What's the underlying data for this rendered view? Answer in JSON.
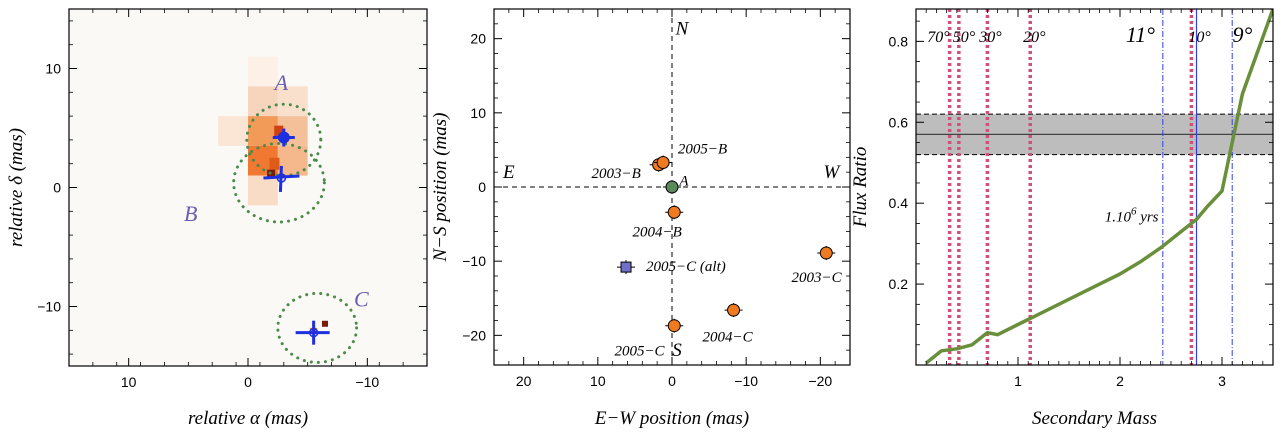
{
  "chart_data": [
    {
      "type": "heatmap",
      "xlabel": "relative α (mas)",
      "ylabel": "relative δ (mas)",
      "xlim": [
        15,
        -15
      ],
      "ylim": [
        -15,
        15
      ],
      "xticks": [
        10,
        0,
        -10
      ],
      "yticks": [
        10,
        0,
        -10
      ],
      "xtick_labels": [
        "10",
        "0",
        "−10"
      ],
      "ytick_labels": [
        "10",
        "0",
        "−10"
      ],
      "components": [
        {
          "name": "A",
          "x": -3.0,
          "y": 4.2,
          "label_x": -2.8,
          "label_y": 8.2
        },
        {
          "name": "B",
          "x": -2.8,
          "y": 0.8,
          "label_x": 4.8,
          "label_y": -2.8
        },
        {
          "name": "C",
          "x": -5.5,
          "y": -12.2,
          "label_x": -9.5,
          "label_y": -10.0
        }
      ],
      "colors": {
        "blue": "#1f2fe0",
        "green": "#4a8a4a",
        "label": "#6a5fb0"
      }
    },
    {
      "type": "scatter",
      "xlabel": "E−W position (mas)",
      "ylabel": "N−S position (mas)",
      "xlim": [
        24,
        -24
      ],
      "ylim": [
        -24,
        24
      ],
      "xticks": [
        20,
        10,
        0,
        -10,
        -20
      ],
      "yticks": [
        20,
        10,
        0,
        -10,
        -20
      ],
      "xtick_labels": [
        "20",
        "10",
        "0",
        "−10",
        "−20"
      ],
      "ytick_labels": [
        "20",
        "10",
        "0",
        "−10",
        "−20"
      ],
      "directions": {
        "N": "N",
        "S": "S",
        "E": "E",
        "W": "W"
      },
      "points": [
        {
          "label": "A",
          "x": 0,
          "y": 0,
          "color": "#5a8a5a",
          "shape": "circle"
        },
        {
          "label": "2003−B",
          "x": 1.8,
          "y": 3.0,
          "color": "#f07a20",
          "shape": "circle"
        },
        {
          "label": "2005−B",
          "x": 1.2,
          "y": 3.3,
          "color": "#f07a20",
          "shape": "circle"
        },
        {
          "label": "2004−B",
          "x": -0.3,
          "y": -3.4,
          "color": "#f07a20",
          "shape": "circle"
        },
        {
          "label": "2005−C (alt)",
          "x": 6.2,
          "y": -10.8,
          "color": "#7070c8",
          "shape": "square"
        },
        {
          "label": "2003−C",
          "x": -20.8,
          "y": -8.9,
          "color": "#f07a20",
          "shape": "circle"
        },
        {
          "label": "2004−C",
          "x": -8.3,
          "y": -16.6,
          "color": "#f07a20",
          "shape": "circle"
        },
        {
          "label": "2005−C",
          "x": -0.3,
          "y": -18.7,
          "color": "#f07a20",
          "shape": "circle"
        }
      ]
    },
    {
      "type": "line",
      "xlabel": "Secondary Mass",
      "ylabel": "Flux Ratio",
      "xlim": [
        0.0,
        3.5
      ],
      "ylim": [
        0.0,
        0.88
      ],
      "xticks": [
        1,
        2,
        3
      ],
      "yticks": [
        0.2,
        0.4,
        0.6,
        0.8
      ],
      "xtick_labels": [
        "1",
        "2",
        "3"
      ],
      "ytick_labels": [
        "0.2",
        "0.4",
        "0.6",
        "0.8"
      ],
      "series": [
        {
          "name": "1.10⁶ yrs",
          "x": [
            0.1,
            0.25,
            0.4,
            0.55,
            0.7,
            0.8,
            1.0,
            1.2,
            1.4,
            1.6,
            1.8,
            2.0,
            2.2,
            2.4,
            2.6,
            2.75,
            2.85,
            3.0,
            3.1,
            3.2,
            3.3,
            3.5
          ],
          "y": [
            0.005,
            0.035,
            0.04,
            0.05,
            0.08,
            0.075,
            0.1,
            0.125,
            0.15,
            0.175,
            0.2,
            0.225,
            0.255,
            0.29,
            0.33,
            0.36,
            0.39,
            0.43,
            0.55,
            0.67,
            0.74,
            0.88
          ],
          "color": "#6a8f3a"
        }
      ],
      "band": {
        "center": 0.57,
        "low": 0.52,
        "high": 0.62,
        "color": "#bdbdbd"
      },
      "annotation": {
        "text": "1.10",
        "superscript": "6",
        "suffix": " yrs",
        "x": 1.85,
        "y": 0.355
      },
      "vlines_dotted": [
        {
          "x": 0.33,
          "label": "70°",
          "label_x": 0.22
        },
        {
          "x": 0.42,
          "label": "50°",
          "label_x": 0.47
        },
        {
          "x": 0.7,
          "label": "30°",
          "label_x": 0.73
        },
        {
          "x": 1.12,
          "label": "20°",
          "label_x": 1.16
        },
        {
          "x": 2.7,
          "label": "10°",
          "label_x": 2.78
        }
      ],
      "vlines_dashdot": [
        {
          "x": 2.42,
          "label": "11°",
          "label_x": 2.2
        },
        {
          "x": 3.1,
          "label": "9°",
          "label_x": 3.2
        }
      ],
      "vline_solid": {
        "x": 2.75
      },
      "colors": {
        "dotted": "#d0507a",
        "dashdot": "#3040e0",
        "solid": "#3040e0"
      }
    }
  ]
}
